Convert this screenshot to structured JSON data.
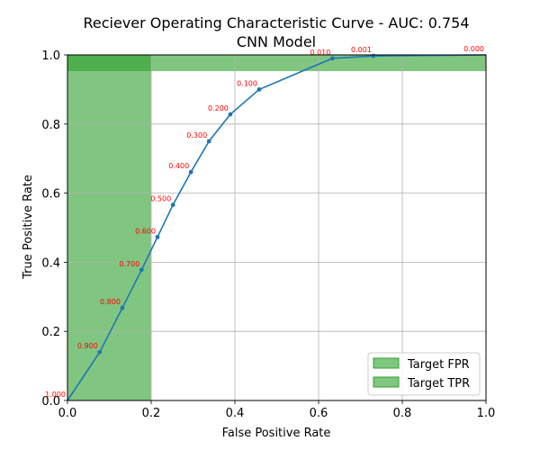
{
  "chart_data": {
    "type": "line",
    "title": "Reciever Operating Characteristic Curve - AUC: 0.754",
    "subtitle": "CNN Model",
    "xlabel": "False Positive Rate",
    "ylabel": "True Positive Rate",
    "xlim": [
      0.0,
      1.0
    ],
    "ylim": [
      0.0,
      1.0
    ],
    "grid": true,
    "x_ticks": [
      "0.0",
      "0.2",
      "0.4",
      "0.6",
      "0.8",
      "1.0"
    ],
    "y_ticks": [
      "0.0",
      "0.2",
      "0.4",
      "0.6",
      "0.8",
      "1.0"
    ],
    "x": [
      0.0,
      0.077,
      0.131,
      0.177,
      0.215,
      0.252,
      0.295,
      0.338,
      0.389,
      0.458,
      0.633,
      0.731,
      1.0
    ],
    "y": [
      0.0,
      0.14,
      0.268,
      0.378,
      0.473,
      0.566,
      0.661,
      0.75,
      0.828,
      0.9,
      0.99,
      0.997,
      1.0
    ],
    "thresholds": [
      "1.000",
      "0.900",
      "0.800",
      "0.700",
      "0.600",
      "0.500",
      "0.400",
      "0.300",
      "0.200",
      "0.100",
      "0.010",
      "0.001",
      "0.000"
    ],
    "line_color": "#1f77b4",
    "threshold_label_color": "#ff0000",
    "target_fpr": {
      "max_fpr": 0.2,
      "color": "#2ca02c"
    },
    "target_tpr": {
      "min_tpr": 0.953,
      "color": "#2ca02c"
    },
    "legend": {
      "position": "lower-right",
      "entries": [
        "Target FPR",
        "Target TPR"
      ]
    }
  }
}
